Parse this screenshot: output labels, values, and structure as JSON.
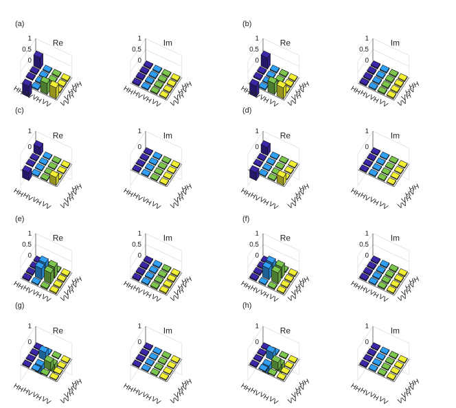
{
  "figure": {
    "title": ""
  },
  "chart_data": [
    {
      "panel": "(a)",
      "title": "Re",
      "type": "bar3",
      "zticks": [
        "1",
        "0.5",
        "0"
      ],
      "basis": [
        "HH",
        "HV",
        "VH",
        "VV"
      ],
      "matrix": [
        [
          0.5,
          0.0,
          0.0,
          0.0
        ],
        [
          0.0,
          0.0,
          0.0,
          0.0
        ],
        [
          0.0,
          0.0,
          0.0,
          0.0
        ],
        [
          -0.5,
          0.0,
          0.5,
          0.5
        ]
      ]
    },
    {
      "panel": "(a)",
      "title": "Im",
      "type": "bar3",
      "zticks": [
        "1",
        "0.5",
        "0"
      ],
      "basis": [
        "HH",
        "HV",
        "VH",
        "VV"
      ],
      "matrix": [
        [
          0,
          0,
          0,
          0
        ],
        [
          0,
          0,
          0,
          0
        ],
        [
          0,
          0,
          0,
          0
        ],
        [
          0,
          0,
          0,
          0
        ]
      ]
    },
    {
      "panel": "(b)",
      "title": "Re",
      "type": "bar3",
      "zticks": [
        "1",
        "0.5",
        "0"
      ],
      "basis": [
        "HH",
        "HV",
        "VH",
        "VV"
      ],
      "matrix": [
        [
          0.5,
          0.0,
          0.0,
          0.0
        ],
        [
          0.0,
          0.0,
          0.0,
          0.0
        ],
        [
          0.0,
          0.0,
          0.0,
          0.0
        ],
        [
          -0.5,
          0.0,
          0.5,
          0.5
        ]
      ]
    },
    {
      "panel": "(b)",
      "title": "Im",
      "type": "bar3",
      "zticks": [
        "1",
        "0.5",
        "0"
      ],
      "basis": [
        "HH",
        "HV",
        "VH",
        "VV"
      ],
      "matrix": [
        [
          0.02,
          0.02,
          0,
          0
        ],
        [
          0.02,
          0,
          0,
          0.02
        ],
        [
          0,
          0.02,
          0,
          0
        ],
        [
          0,
          0,
          0.02,
          0
        ]
      ]
    },
    {
      "panel": "(c)",
      "title": "Re",
      "type": "bar3",
      "zticks": [
        "1",
        "0",
        "-1"
      ],
      "basis": [
        "HH",
        "HV",
        "VH",
        "VV"
      ],
      "matrix": [
        [
          0.5,
          0.0,
          0.0,
          0.0
        ],
        [
          0.0,
          0.0,
          0.0,
          0.0
        ],
        [
          0.0,
          0.0,
          0.0,
          0.0
        ],
        [
          -0.5,
          0.0,
          0.0,
          0.5
        ]
      ]
    },
    {
      "panel": "(c)",
      "title": "Im",
      "type": "bar3",
      "zticks": [
        "1",
        "0",
        "-1"
      ],
      "basis": [
        "HH",
        "HV",
        "VH",
        "VV"
      ],
      "matrix": [
        [
          0,
          0,
          0,
          0
        ],
        [
          0,
          0,
          0,
          0
        ],
        [
          0,
          0,
          0,
          0
        ],
        [
          0,
          0,
          0,
          0
        ]
      ]
    },
    {
      "panel": "(d)",
      "title": "Re",
      "type": "bar3",
      "zticks": [
        "1",
        "0",
        "-1"
      ],
      "basis": [
        "HH",
        "HV",
        "VH",
        "VV"
      ],
      "matrix": [
        [
          0.5,
          0.0,
          0.0,
          0.0
        ],
        [
          0.0,
          0.0,
          0.0,
          0.0
        ],
        [
          0.0,
          0.0,
          0.0,
          0.0
        ],
        [
          -0.5,
          0.0,
          0.0,
          0.5
        ]
      ]
    },
    {
      "panel": "(d)",
      "title": "Im",
      "type": "bar3",
      "zticks": [
        "1",
        "0",
        "-1"
      ],
      "basis": [
        "HH",
        "HV",
        "VH",
        "VV"
      ],
      "matrix": [
        [
          0,
          0,
          0,
          0
        ],
        [
          0,
          0,
          0,
          0
        ],
        [
          0,
          0,
          0,
          0
        ],
        [
          0,
          0,
          0,
          0
        ]
      ]
    },
    {
      "panel": "(e)",
      "title": "Re",
      "type": "bar3",
      "zticks": [
        "1",
        "0.5",
        "0"
      ],
      "basis": [
        "HH",
        "HV",
        "VH",
        "VV"
      ],
      "matrix": [
        [
          0,
          0,
          0,
          0
        ],
        [
          0,
          0.5,
          0.5,
          0
        ],
        [
          0,
          0.5,
          0.5,
          0
        ],
        [
          0,
          0,
          0,
          0
        ]
      ]
    },
    {
      "panel": "(e)",
      "title": "Im",
      "type": "bar3",
      "zticks": [
        "1",
        "0.5",
        "0"
      ],
      "basis": [
        "HH",
        "HV",
        "VH",
        "VV"
      ],
      "matrix": [
        [
          0,
          0,
          0,
          0
        ],
        [
          0,
          0,
          0,
          0
        ],
        [
          0,
          0,
          0,
          0
        ],
        [
          0,
          0,
          0,
          0
        ]
      ]
    },
    {
      "panel": "(f)",
      "title": "Re",
      "type": "bar3",
      "zticks": [
        "1",
        "0.5",
        "0"
      ],
      "basis": [
        "HH",
        "HV",
        "VH",
        "VV"
      ],
      "matrix": [
        [
          0,
          0,
          0,
          0
        ],
        [
          0,
          0.5,
          0.5,
          0
        ],
        [
          0,
          0.5,
          0.5,
          0
        ],
        [
          0,
          0,
          0,
          0
        ]
      ]
    },
    {
      "panel": "(f)",
      "title": "Im",
      "type": "bar3",
      "zticks": [
        "1",
        "0.5",
        "0"
      ],
      "basis": [
        "HH",
        "HV",
        "VH",
        "VV"
      ],
      "matrix": [
        [
          0,
          0.02,
          0,
          0
        ],
        [
          0.02,
          0,
          0.02,
          0
        ],
        [
          0,
          0.02,
          0,
          0.02
        ],
        [
          0,
          0,
          0.02,
          0
        ]
      ]
    },
    {
      "panel": "(g)",
      "title": "Re",
      "type": "bar3",
      "zticks": [
        "1",
        "0",
        "-1"
      ],
      "basis": [
        "HH",
        "HV",
        "VH",
        "VV"
      ],
      "matrix": [
        [
          0,
          0,
          0,
          0
        ],
        [
          0,
          0.5,
          -0.5,
          0
        ],
        [
          0,
          -0.5,
          0.5,
          0
        ],
        [
          0,
          0,
          0,
          0
        ]
      ]
    },
    {
      "panel": "(g)",
      "title": "Im",
      "type": "bar3",
      "zticks": [
        "1",
        "0",
        "-1"
      ],
      "basis": [
        "HH",
        "HV",
        "VH",
        "VV"
      ],
      "matrix": [
        [
          0,
          0,
          0,
          0
        ],
        [
          0,
          0,
          0,
          0
        ],
        [
          0,
          0,
          0,
          0
        ],
        [
          0,
          0,
          0,
          0
        ]
      ]
    },
    {
      "panel": "(h)",
      "title": "Re",
      "type": "bar3",
      "zticks": [
        "1",
        "0",
        "-1"
      ],
      "basis": [
        "HH",
        "HV",
        "VH",
        "VV"
      ],
      "matrix": [
        [
          0,
          0,
          0,
          0
        ],
        [
          0,
          0.5,
          -0.5,
          0
        ],
        [
          0,
          -0.5,
          0.5,
          0
        ],
        [
          0,
          0,
          0,
          0
        ]
      ]
    },
    {
      "panel": "(h)",
      "title": "Im",
      "type": "bar3",
      "zticks": [
        "1",
        "0",
        "-1"
      ],
      "basis": [
        "HH",
        "HV",
        "VH",
        "VV"
      ],
      "matrix": [
        [
          0,
          0,
          0,
          0
        ],
        [
          0,
          0,
          0,
          0
        ],
        [
          0,
          0,
          0,
          0
        ],
        [
          0,
          0,
          0,
          0
        ]
      ]
    }
  ],
  "palette": {
    "HH": "#3e26a8",
    "HV": "#2f9ef3",
    "VH": "#7cc64d",
    "VV": "#f4f034"
  },
  "colors": {
    "axis": "#555555",
    "grid": "#dcdcdc",
    "edge": "#111111"
  }
}
